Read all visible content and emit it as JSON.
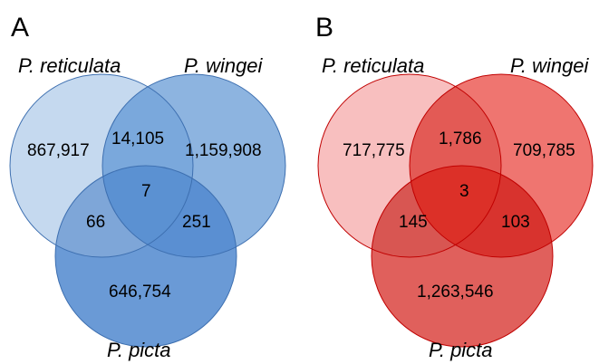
{
  "panels": [
    {
      "letter": "A",
      "labels": {
        "left": "P. reticulata",
        "right": "P. wingei",
        "bottom": "P. picta"
      },
      "counts": {
        "left_only": "867,917",
        "right_only": "1,159,908",
        "bottom_only": "646,754",
        "left_right": "14,105",
        "left_bottom": "66",
        "right_bottom": "251",
        "all": "7"
      },
      "colors": {
        "left": "#c5d9ef",
        "right": "#8db4e0",
        "bottom": "#6a9ad6",
        "left_right": "#7aa8dc",
        "left_bottom": "#7ea6d8",
        "right_bottom": "#5a8fd2",
        "all": "#5b91d2",
        "stroke": "#3d6fb0"
      }
    },
    {
      "letter": "B",
      "labels": {
        "left": "P. reticulata",
        "right": "P. wingei",
        "bottom": "P. picta"
      },
      "counts": {
        "left_only": "717,775",
        "right_only": "709,785",
        "bottom_only": "1,263,546",
        "left_right": "1,786",
        "left_bottom": "145",
        "right_bottom": "103",
        "all": "3"
      },
      "colors": {
        "left": "#f8bfbf",
        "right": "#ef7570",
        "bottom": "#e0605c",
        "left_right": "#e35a55",
        "left_bottom": "#d85652",
        "right_bottom": "#d8332e",
        "all": "#dc3028",
        "stroke": "#c00000"
      }
    }
  ]
}
